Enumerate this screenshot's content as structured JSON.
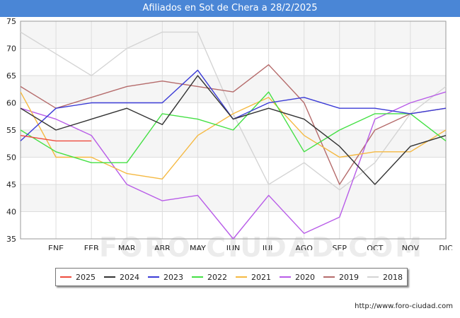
{
  "title": "Afiliados en Sot de Chera a 28/2/2025",
  "source": "http://www.foro-ciudad.com",
  "watermark": "FORO-CIUDAD.COM",
  "chart_data": {
    "type": "line",
    "categories": [
      "",
      "ENE",
      "FEB",
      "MAR",
      "ABR",
      "MAY",
      "JUN",
      "JUL",
      "AGO",
      "SEP",
      "OCT",
      "NOV",
      "DIC"
    ],
    "ylim": [
      35,
      75
    ],
    "yticks": [
      35,
      40,
      45,
      50,
      55,
      60,
      65,
      70,
      75
    ],
    "grid": true,
    "legend_position": "bottom",
    "series": [
      {
        "name": "2025",
        "color": "#ee4b3d",
        "values": [
          54,
          53,
          53,
          null,
          null,
          null,
          null,
          null,
          null,
          null,
          null,
          null,
          null
        ]
      },
      {
        "name": "2024",
        "color": "#333333",
        "values": [
          59,
          55,
          57,
          59,
          56,
          65,
          57,
          59,
          57,
          52,
          45,
          52,
          54
        ]
      },
      {
        "name": "2023",
        "color": "#3b3bd6",
        "values": [
          53,
          59,
          60,
          60,
          60,
          66,
          57,
          60,
          61,
          59,
          59,
          58,
          59
        ]
      },
      {
        "name": "2022",
        "color": "#44e044",
        "values": [
          55,
          51,
          49,
          49,
          58,
          57,
          55,
          62,
          51,
          55,
          58,
          58,
          53
        ]
      },
      {
        "name": "2021",
        "color": "#f5b942",
        "values": [
          62,
          50,
          50,
          47,
          46,
          54,
          58,
          61,
          54,
          50,
          51,
          51,
          55
        ]
      },
      {
        "name": "2020",
        "color": "#b85ce8",
        "values": [
          59,
          57,
          54,
          45,
          42,
          43,
          35,
          43,
          36,
          39,
          57,
          60,
          62
        ]
      },
      {
        "name": "2019",
        "color": "#b56b6b",
        "values": [
          63,
          59,
          61,
          63,
          64,
          63,
          62,
          67,
          60,
          45,
          55,
          58,
          59
        ]
      },
      {
        "name": "2018",
        "color": "#d4d4d4",
        "values": [
          73,
          69,
          65,
          70,
          73,
          73,
          58,
          45,
          49,
          44,
          49,
          58,
          63
        ]
      }
    ]
  }
}
